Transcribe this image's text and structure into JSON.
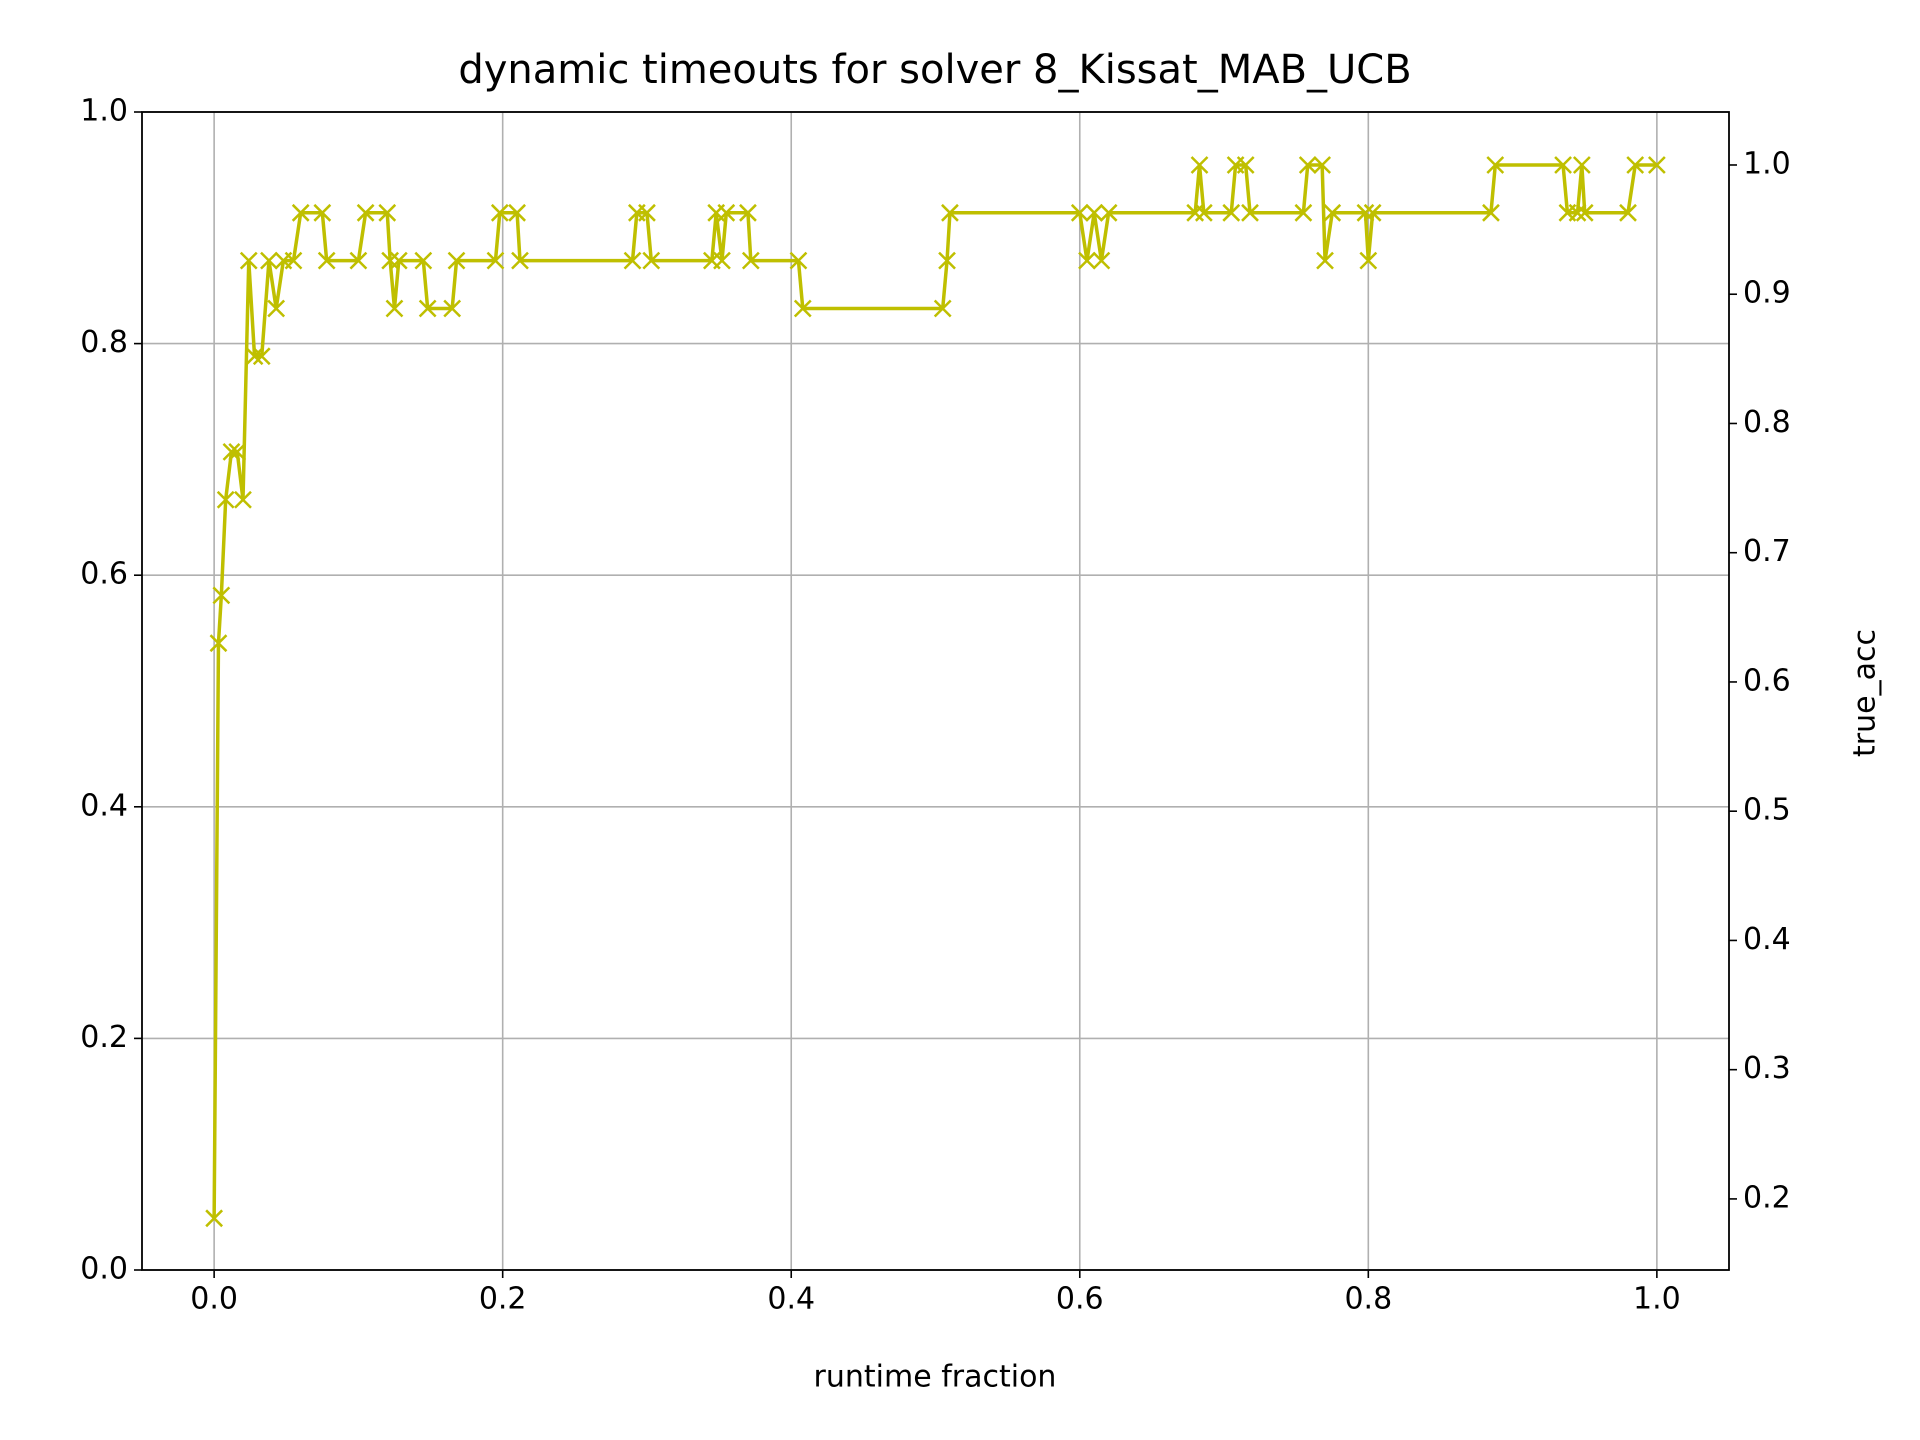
{
  "chart_data": {
    "type": "line",
    "title": "dynamic timeouts for solver 8_Kissat_MAB_UCB",
    "xlabel": "runtime fraction",
    "y2label": "true_acc",
    "y2label_color": "#ff0000",
    "grid": true,
    "xlim": [
      -0.05,
      1.05
    ],
    "xticks": [
      {
        "value": 0,
        "label": "0.0"
      },
      0.2,
      0.4,
      0.6,
      0.8,
      {
        "value": 1,
        "label": "1.0"
      }
    ],
    "ylim": [
      0,
      1
    ],
    "yticks": [
      {
        "value": 0,
        "label": "0.0"
      },
      0.2,
      0.4,
      0.6,
      0.8,
      {
        "value": 1,
        "label": "1.0"
      }
    ],
    "y2lim": [
      0.145,
      1.041
    ],
    "y2ticks": [
      0.2,
      0.3,
      0.4,
      0.5,
      0.6,
      0.7,
      0.8,
      0.9,
      {
        "value": 1,
        "label": "1.0"
      }
    ],
    "x": [
      0.0,
      0.003,
      0.005,
      0.008,
      0.012,
      0.016,
      0.02,
      0.024,
      0.028,
      0.033,
      0.038,
      0.043,
      0.048,
      0.055,
      0.06,
      0.075,
      0.078,
      0.1,
      0.105,
      0.12,
      0.122,
      0.125,
      0.128,
      0.145,
      0.148,
      0.165,
      0.168,
      0.195,
      0.198,
      0.21,
      0.212,
      0.29,
      0.293,
      0.3,
      0.303,
      0.345,
      0.348,
      0.352,
      0.355,
      0.37,
      0.372,
      0.405,
      0.408,
      0.505,
      0.508,
      0.51,
      0.6,
      0.605,
      0.61,
      0.615,
      0.62,
      0.68,
      0.683,
      0.686,
      0.705,
      0.708,
      0.715,
      0.718,
      0.755,
      0.758,
      0.768,
      0.77,
      0.775,
      0.798,
      0.8,
      0.803,
      0.885,
      0.888,
      0.935,
      0.938,
      0.945,
      0.948,
      0.95,
      0.98,
      0.985,
      1.0
    ],
    "series": [
      {
        "color": "#bfbf00",
        "marker": "x",
        "axis": "y2",
        "values": [
          0.185,
          0.63,
          0.667,
          0.741,
          0.778,
          0.778,
          0.741,
          0.926,
          0.852,
          0.852,
          0.926,
          0.889,
          0.926,
          0.926,
          0.963,
          0.963,
          0.926,
          0.926,
          0.963,
          0.963,
          0.926,
          0.889,
          0.926,
          0.926,
          0.889,
          0.889,
          0.926,
          0.926,
          0.963,
          0.963,
          0.926,
          0.926,
          0.963,
          0.963,
          0.926,
          0.926,
          0.963,
          0.926,
          0.963,
          0.963,
          0.926,
          0.926,
          0.889,
          0.889,
          0.926,
          0.963,
          0.963,
          0.926,
          0.963,
          0.926,
          0.963,
          0.963,
          1.0,
          0.963,
          0.963,
          1.0,
          1.0,
          0.963,
          0.963,
          1.0,
          1.0,
          0.926,
          0.963,
          0.963,
          0.926,
          0.963,
          0.963,
          1.0,
          1.0,
          0.963,
          0.963,
          1.0,
          0.963,
          0.963,
          1.0,
          1.0
        ]
      }
    ]
  }
}
